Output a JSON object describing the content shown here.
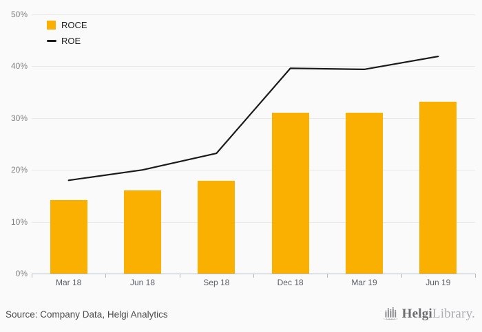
{
  "chart_data": {
    "type": "bar",
    "categories": [
      "Mar 18",
      "Jun 18",
      "Sep 18",
      "Dec 18",
      "Mar 19",
      "Jun 19"
    ],
    "series": [
      {
        "name": "ROCE",
        "type": "bar",
        "color": "#F9B000",
        "values": [
          14.2,
          16.0,
          17.9,
          31.0,
          31.0,
          33.1
        ]
      },
      {
        "name": "ROE",
        "type": "line",
        "color": "#1A1A1A",
        "values": [
          18.0,
          20.0,
          23.2,
          39.6,
          39.4,
          41.9
        ]
      }
    ],
    "title": "",
    "xlabel": "",
    "ylabel": "",
    "ylim": [
      0,
      50
    ],
    "ytick_step": 10,
    "ytick_labels": [
      "0%",
      "10%",
      "20%",
      "30%",
      "40%",
      "50%"
    ],
    "grid": true,
    "legend_position": "top-left"
  },
  "legend": {
    "items": [
      {
        "label": "ROCE",
        "swatch": "square"
      },
      {
        "label": "ROE",
        "swatch": "line"
      }
    ]
  },
  "footer": {
    "source": "Source: Company Data, Helgi Analytics",
    "logo": {
      "brand_bold": "Helgi",
      "brand_light": "Library."
    }
  },
  "colors": {
    "background": "#fafafa",
    "gridline": "#e7e7e7",
    "axis": "#b2bac6",
    "bar": "#F9B000",
    "line": "#1A1A1A",
    "y_label": "#7f7f7f",
    "x_label": "#5a5f66",
    "source_text": "#4d4d4d"
  }
}
